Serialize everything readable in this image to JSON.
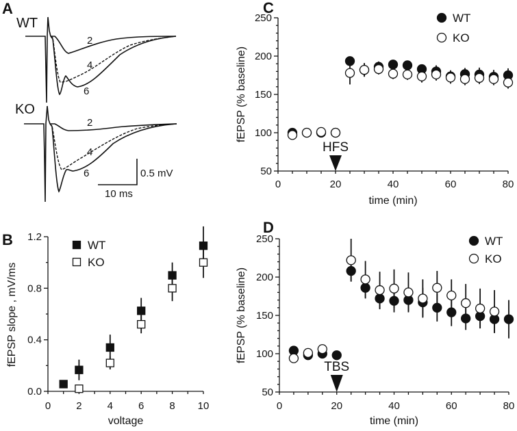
{
  "panel_labels": [
    "A",
    "B",
    "C",
    "D"
  ],
  "panel_a": {
    "groups": [
      "WT",
      "KO"
    ],
    "trace_labels": [
      "2",
      "4",
      "6"
    ],
    "scale_voltage": "0.5 mV",
    "scale_time": "10 ms"
  },
  "chart_data": [
    {
      "panel": "B",
      "type": "scatter",
      "xlabel": "voltage",
      "ylabel": "fEPSP slope , mV/ms",
      "xlim": [
        0,
        10
      ],
      "ylim": [
        0,
        1.2
      ],
      "xticks": [
        "0",
        "2",
        "4",
        "6",
        "8",
        "10"
      ],
      "yticks": [
        "0.0",
        "0.4",
        "0.8",
        "1.2"
      ],
      "legend_position": "top-left",
      "series": [
        {
          "name": "WT",
          "marker": "filled-square",
          "x": [
            1,
            2,
            4,
            6,
            8,
            10
          ],
          "y": [
            0.056,
            0.166,
            0.34,
            0.625,
            0.9,
            1.13
          ],
          "err": [
            0.01,
            0.08,
            0.1,
            0.1,
            0.1,
            0.15
          ]
        },
        {
          "name": "KO",
          "marker": "open-square",
          "x": [
            2,
            4,
            6,
            8,
            10
          ],
          "y": [
            0.02,
            0.22,
            0.52,
            0.8,
            1.0
          ],
          "err": [
            0.01,
            0.05,
            0.07,
            0.1,
            0.12
          ]
        }
      ]
    },
    {
      "panel": "C",
      "type": "scatter",
      "xlabel": "time (min)",
      "ylabel": "fEPSP (% baseline)",
      "xlim": [
        0,
        80
      ],
      "ylim": [
        50,
        250
      ],
      "xticks": [
        "0",
        "20",
        "40",
        "60",
        "80"
      ],
      "yticks": [
        "50",
        "100",
        "150",
        "200",
        "250"
      ],
      "legend_position": "top-right",
      "annotation": {
        "text": "HFS",
        "x": 20
      },
      "series": [
        {
          "name": "WT",
          "marker": "filled-circle",
          "x": [
            5,
            10,
            15,
            20,
            25,
            30,
            35,
            40,
            45,
            50,
            55,
            60,
            65,
            70,
            75,
            80
          ],
          "y": [
            100,
            100,
            100,
            100,
            193.5,
            182,
            186,
            189,
            188,
            183,
            180,
            173.5,
            176.5,
            176,
            173,
            175
          ],
          "err": [
            2,
            2,
            2,
            2,
            6,
            9,
            7,
            6,
            6,
            6,
            8,
            8,
            8,
            9,
            9,
            9
          ]
        },
        {
          "name": "KO",
          "marker": "open-circle",
          "x": [
            5,
            10,
            15,
            20,
            25,
            30,
            35,
            40,
            45,
            50,
            55,
            60,
            65,
            70,
            75,
            80
          ],
          "y": [
            97,
            100,
            101,
            100,
            178,
            182,
            183,
            177,
            176,
            173.5,
            176,
            172,
            170,
            171.5,
            170,
            165.5
          ],
          "err": [
            2,
            2,
            2,
            2,
            15,
            8,
            7,
            7,
            7,
            8,
            8,
            8,
            8,
            8,
            8,
            8
          ]
        }
      ]
    },
    {
      "panel": "D",
      "type": "scatter",
      "xlabel": "time (min)",
      "ylabel": "fEPSP (% baseline)",
      "xlim": [
        0,
        80
      ],
      "ylim": [
        50,
        250
      ],
      "xticks": [
        "0",
        "20",
        "40",
        "60",
        "80"
      ],
      "yticks": [
        "50",
        "100",
        "150",
        "200",
        "250"
      ],
      "legend_position": "top-right",
      "annotation": {
        "text": "TBS",
        "x": 20
      },
      "series": [
        {
          "name": "WT",
          "marker": "filled-circle",
          "x": [
            5,
            10,
            15,
            20,
            25,
            30,
            35,
            40,
            45,
            50,
            55,
            60,
            65,
            70,
            75,
            80
          ],
          "y": [
            104,
            98,
            100,
            98,
            208,
            186,
            172,
            169,
            170,
            167,
            160,
            154,
            146,
            149,
            145,
            145
          ],
          "err": [
            2,
            2,
            2,
            2,
            13,
            14,
            14,
            15,
            15,
            19,
            18,
            18,
            15,
            16,
            18,
            25
          ]
        },
        {
          "name": "KO",
          "marker": "open-circle",
          "x": [
            5,
            10,
            15,
            25,
            30,
            35,
            40,
            45,
            50,
            55,
            60,
            65,
            70,
            75
          ],
          "y": [
            94,
            101,
            106,
            222,
            197,
            183,
            185,
            180,
            172,
            186,
            176,
            166,
            159,
            155
          ],
          "err": [
            2,
            2,
            2,
            28,
            24,
            24,
            25,
            26,
            25,
            22,
            21,
            25,
            26,
            28
          ]
        }
      ]
    }
  ]
}
